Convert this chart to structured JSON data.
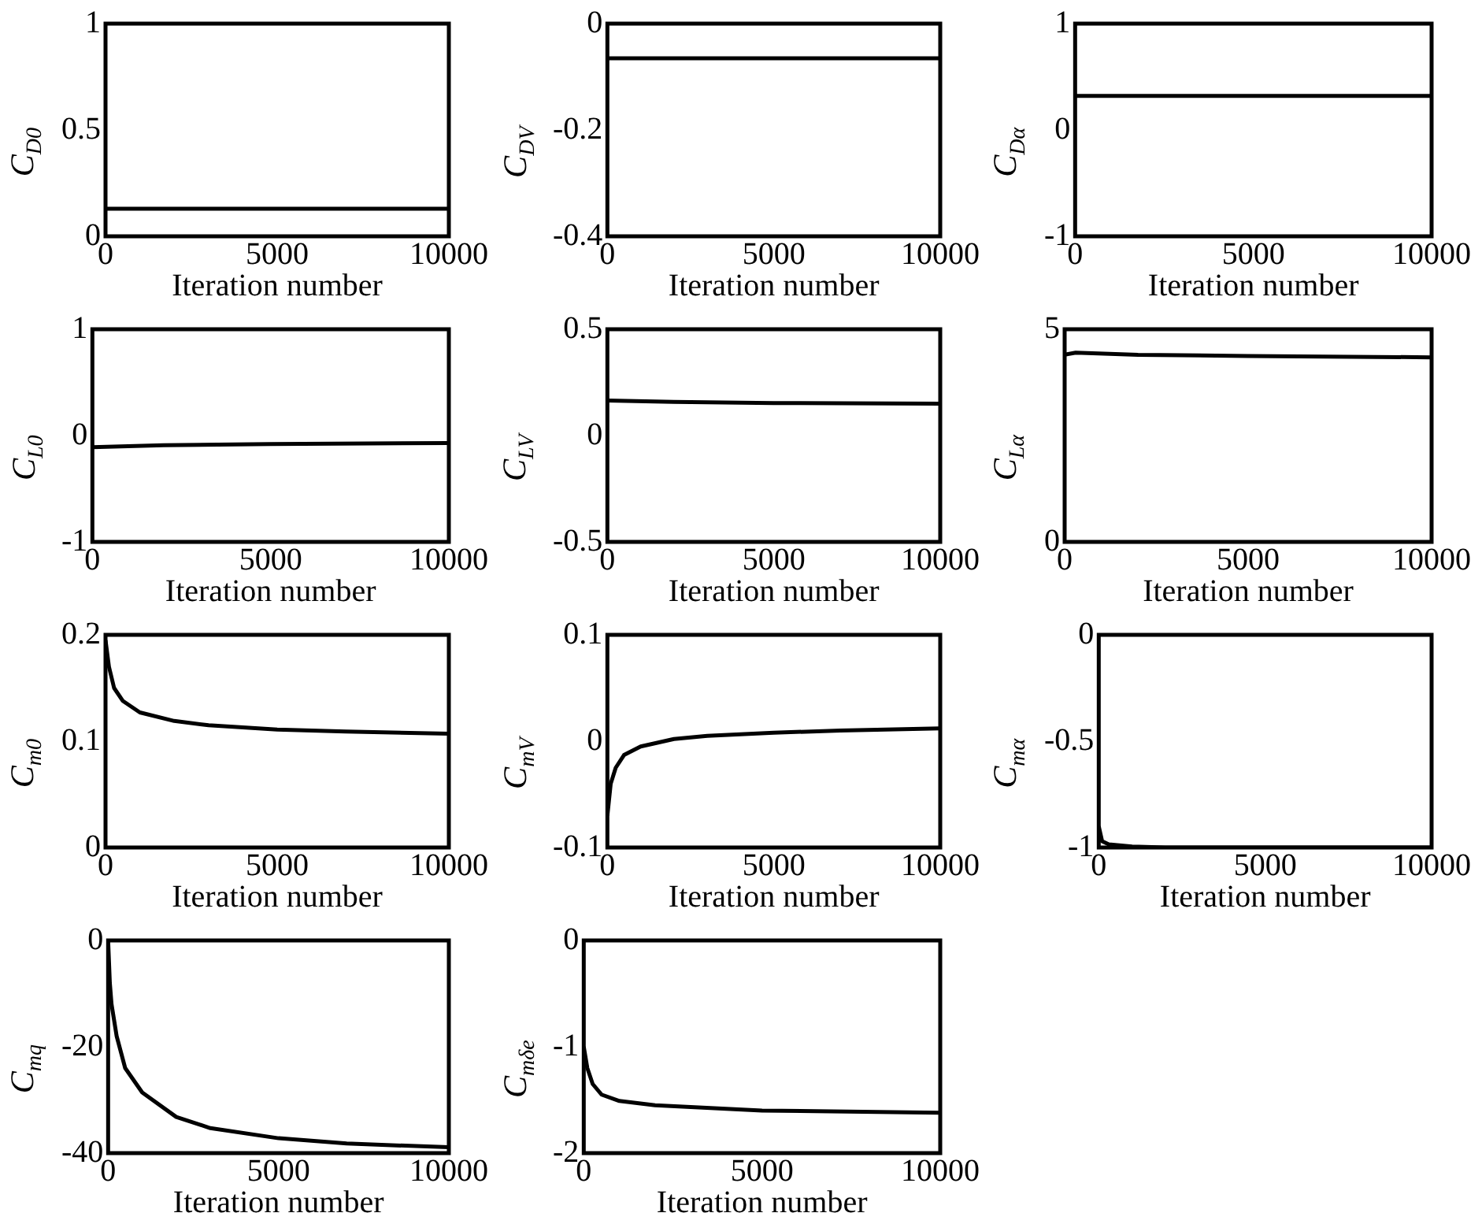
{
  "chart_data": [
    {
      "type": "line",
      "xlabel": "Iteration number",
      "ylabel": "C$_{D0}$",
      "x": [
        0,
        10000
      ],
      "series": [
        {
          "color": "#000000",
          "values": [
            0.13,
            0.13
          ]
        }
      ],
      "xlim": [
        0,
        10000
      ],
      "xticks": [
        0,
        5000,
        10000
      ],
      "ylim": [
        0,
        1
      ],
      "yticks": [
        0,
        0.5,
        1
      ],
      "grid": false,
      "legend": false
    },
    {
      "type": "line",
      "xlabel": "Iteration number",
      "ylabel": "C$_{DV}$",
      "x": [
        0,
        10000
      ],
      "series": [
        {
          "color": "#000000",
          "values": [
            -0.065,
            -0.065
          ]
        }
      ],
      "xlim": [
        0,
        10000
      ],
      "xticks": [
        0,
        5000,
        10000
      ],
      "ylim": [
        -0.4,
        0
      ],
      "yticks": [
        -0.4,
        -0.2,
        0
      ],
      "grid": false,
      "legend": false
    },
    {
      "type": "line",
      "xlabel": "Iteration number",
      "ylabel": "C$_{Dα}$",
      "x": [
        0,
        10000
      ],
      "series": [
        {
          "color": "#000000",
          "values": [
            0.32,
            0.32
          ]
        }
      ],
      "xlim": [
        0,
        10000
      ],
      "xticks": [
        0,
        5000,
        10000
      ],
      "ylim": [
        -1,
        1
      ],
      "yticks": [
        -1,
        0,
        1
      ],
      "grid": false,
      "legend": false
    },
    {
      "type": "line",
      "xlabel": "Iteration number",
      "ylabel": "C$_{L0}$",
      "x": [
        0,
        2000,
        5000,
        10000
      ],
      "series": [
        {
          "color": "#000000",
          "values": [
            -0.11,
            -0.09,
            -0.08,
            -0.07
          ]
        }
      ],
      "xlim": [
        0,
        10000
      ],
      "xticks": [
        0,
        5000,
        10000
      ],
      "ylim": [
        -1,
        1
      ],
      "yticks": [
        -1,
        0,
        1
      ],
      "grid": false,
      "legend": false
    },
    {
      "type": "line",
      "xlabel": "Iteration number",
      "ylabel": "C$_{LV}$",
      "x": [
        0,
        2000,
        5000,
        10000
      ],
      "series": [
        {
          "color": "#000000",
          "values": [
            0.165,
            0.158,
            0.153,
            0.15
          ]
        }
      ],
      "xlim": [
        0,
        10000
      ],
      "xticks": [
        0,
        5000,
        10000
      ],
      "ylim": [
        -0.5,
        0.5
      ],
      "yticks": [
        -0.5,
        0,
        0.5
      ],
      "grid": false,
      "legend": false
    },
    {
      "type": "line",
      "xlabel": "Iteration number",
      "ylabel": "C$_{Lα}$",
      "x": [
        0,
        300,
        2000,
        5000,
        10000
      ],
      "series": [
        {
          "color": "#000000",
          "values": [
            4.4,
            4.45,
            4.4,
            4.37,
            4.34
          ]
        }
      ],
      "xlim": [
        0,
        10000
      ],
      "xticks": [
        0,
        5000,
        10000
      ],
      "ylim": [
        0,
        5
      ],
      "yticks": [
        0,
        5
      ],
      "grid": false,
      "legend": false
    },
    {
      "type": "line",
      "xlabel": "Iteration number",
      "ylabel": "C$_{m0}$",
      "x": [
        0,
        100,
        250,
        500,
        1000,
        2000,
        3000,
        5000,
        7000,
        10000
      ],
      "series": [
        {
          "color": "#000000",
          "values": [
            0.195,
            0.17,
            0.15,
            0.138,
            0.127,
            0.119,
            0.115,
            0.111,
            0.109,
            0.107
          ]
        }
      ],
      "xlim": [
        0,
        10000
      ],
      "xticks": [
        0,
        5000,
        10000
      ],
      "ylim": [
        0,
        0.2
      ],
      "yticks": [
        0,
        0.1,
        0.2
      ],
      "grid": false,
      "legend": false
    },
    {
      "type": "line",
      "xlabel": "Iteration number",
      "ylabel": "C$_{mV}$",
      "x": [
        0,
        100,
        250,
        500,
        1000,
        2000,
        3000,
        5000,
        7000,
        10000
      ],
      "series": [
        {
          "color": "#000000",
          "values": [
            -0.07,
            -0.04,
            -0.025,
            -0.013,
            -0.005,
            0.002,
            0.005,
            0.008,
            0.01,
            0.012
          ]
        }
      ],
      "xlim": [
        0,
        10000
      ],
      "xticks": [
        0,
        5000,
        10000
      ],
      "ylim": [
        -0.1,
        0.1
      ],
      "yticks": [
        -0.1,
        0,
        0.1
      ],
      "grid": false,
      "legend": false
    },
    {
      "type": "line",
      "xlabel": "Iteration number",
      "ylabel": "C$_{mα}$",
      "x": [
        0,
        100,
        300,
        1000,
        2000,
        5000,
        10000
      ],
      "series": [
        {
          "color": "#000000",
          "values": [
            -0.9,
            -0.97,
            -0.985,
            -0.995,
            -1,
            -1,
            -1
          ]
        }
      ],
      "xlim": [
        0,
        10000
      ],
      "xticks": [
        0,
        5000,
        10000
      ],
      "ylim": [
        -1,
        0
      ],
      "yticks": [
        -1,
        -0.5,
        0
      ],
      "grid": false,
      "legend": false
    },
    {
      "type": "line",
      "xlabel": "Iteration number",
      "ylabel": "C$_{mq}$",
      "x": [
        0,
        50,
        100,
        250,
        500,
        1000,
        2000,
        3000,
        5000,
        7000,
        10000
      ],
      "series": [
        {
          "color": "#000000",
          "values": [
            0,
            -8,
            -12,
            -18,
            -24,
            -28.6,
            -33.2,
            -35.3,
            -37.2,
            -38.2,
            -38.9
          ]
        }
      ],
      "xlim": [
        0,
        10000
      ],
      "xticks": [
        0,
        5000,
        10000
      ],
      "ylim": [
        -40,
        0
      ],
      "yticks": [
        -40,
        -20,
        0
      ],
      "grid": false,
      "legend": false
    },
    {
      "type": "line",
      "xlabel": "Iteration number",
      "ylabel": "C$_{mδe}$",
      "x": [
        0,
        100,
        250,
        500,
        1000,
        2000,
        5000,
        10000
      ],
      "series": [
        {
          "color": "#000000",
          "values": [
            -1,
            -1.2,
            -1.35,
            -1.45,
            -1.51,
            -1.55,
            -1.6,
            -1.62
          ]
        }
      ],
      "xlim": [
        0,
        10000
      ],
      "xticks": [
        0,
        5000,
        10000
      ],
      "ylim": [
        -2,
        0
      ],
      "yticks": [
        -2,
        -1,
        0
      ],
      "grid": false,
      "legend": false
    }
  ]
}
